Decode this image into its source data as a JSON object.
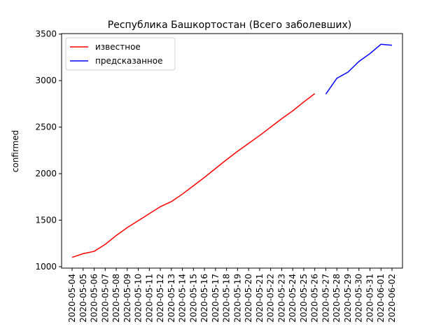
{
  "chart_data": {
    "type": "line",
    "title": "Республика Башкортостан (Всего заболевших)",
    "y_label": "confirmed",
    "categories": [
      "2020-05-04",
      "2020-05-05",
      "2020-05-06",
      "2020-05-07",
      "2020-05-08",
      "2020-05-09",
      "2020-05-10",
      "2020-05-11",
      "2020-05-12",
      "2020-05-13",
      "2020-05-14",
      "2020-05-15",
      "2020-05-16",
      "2020-05-17",
      "2020-05-18",
      "2020-05-19",
      "2020-05-20",
      "2020-05-21",
      "2020-05-22",
      "2020-05-23",
      "2020-05-24",
      "2020-05-25",
      "2020-05-26",
      "2020-05-27",
      "2020-05-28",
      "2020-05-29",
      "2020-05-30",
      "2020-05-31",
      "2020-06-01",
      "2020-06-02"
    ],
    "series": [
      {
        "name": "известное",
        "color": "#ff0000",
        "values": [
          1100,
          1140,
          1165,
          1240,
          1335,
          1420,
          1495,
          1570,
          1645,
          1700,
          1780,
          1870,
          1960,
          2055,
          2150,
          2240,
          2325,
          2410,
          2500,
          2590,
          2675,
          2770,
          2860,
          null,
          null,
          null,
          null,
          null,
          null,
          null
        ]
      },
      {
        "name": "предсказанное",
        "color": "#0000ff",
        "values": [
          null,
          null,
          null,
          null,
          null,
          null,
          null,
          null,
          null,
          null,
          null,
          null,
          null,
          null,
          null,
          null,
          null,
          null,
          null,
          null,
          null,
          null,
          null,
          2855,
          3025,
          3090,
          3205,
          3290,
          3390,
          3380
        ]
      }
    ],
    "ylim": [
      985,
      3505
    ],
    "yticks": [
      1000,
      1500,
      2000,
      2500,
      3000,
      3500
    ],
    "legend": "upper left",
    "grid": false
  }
}
